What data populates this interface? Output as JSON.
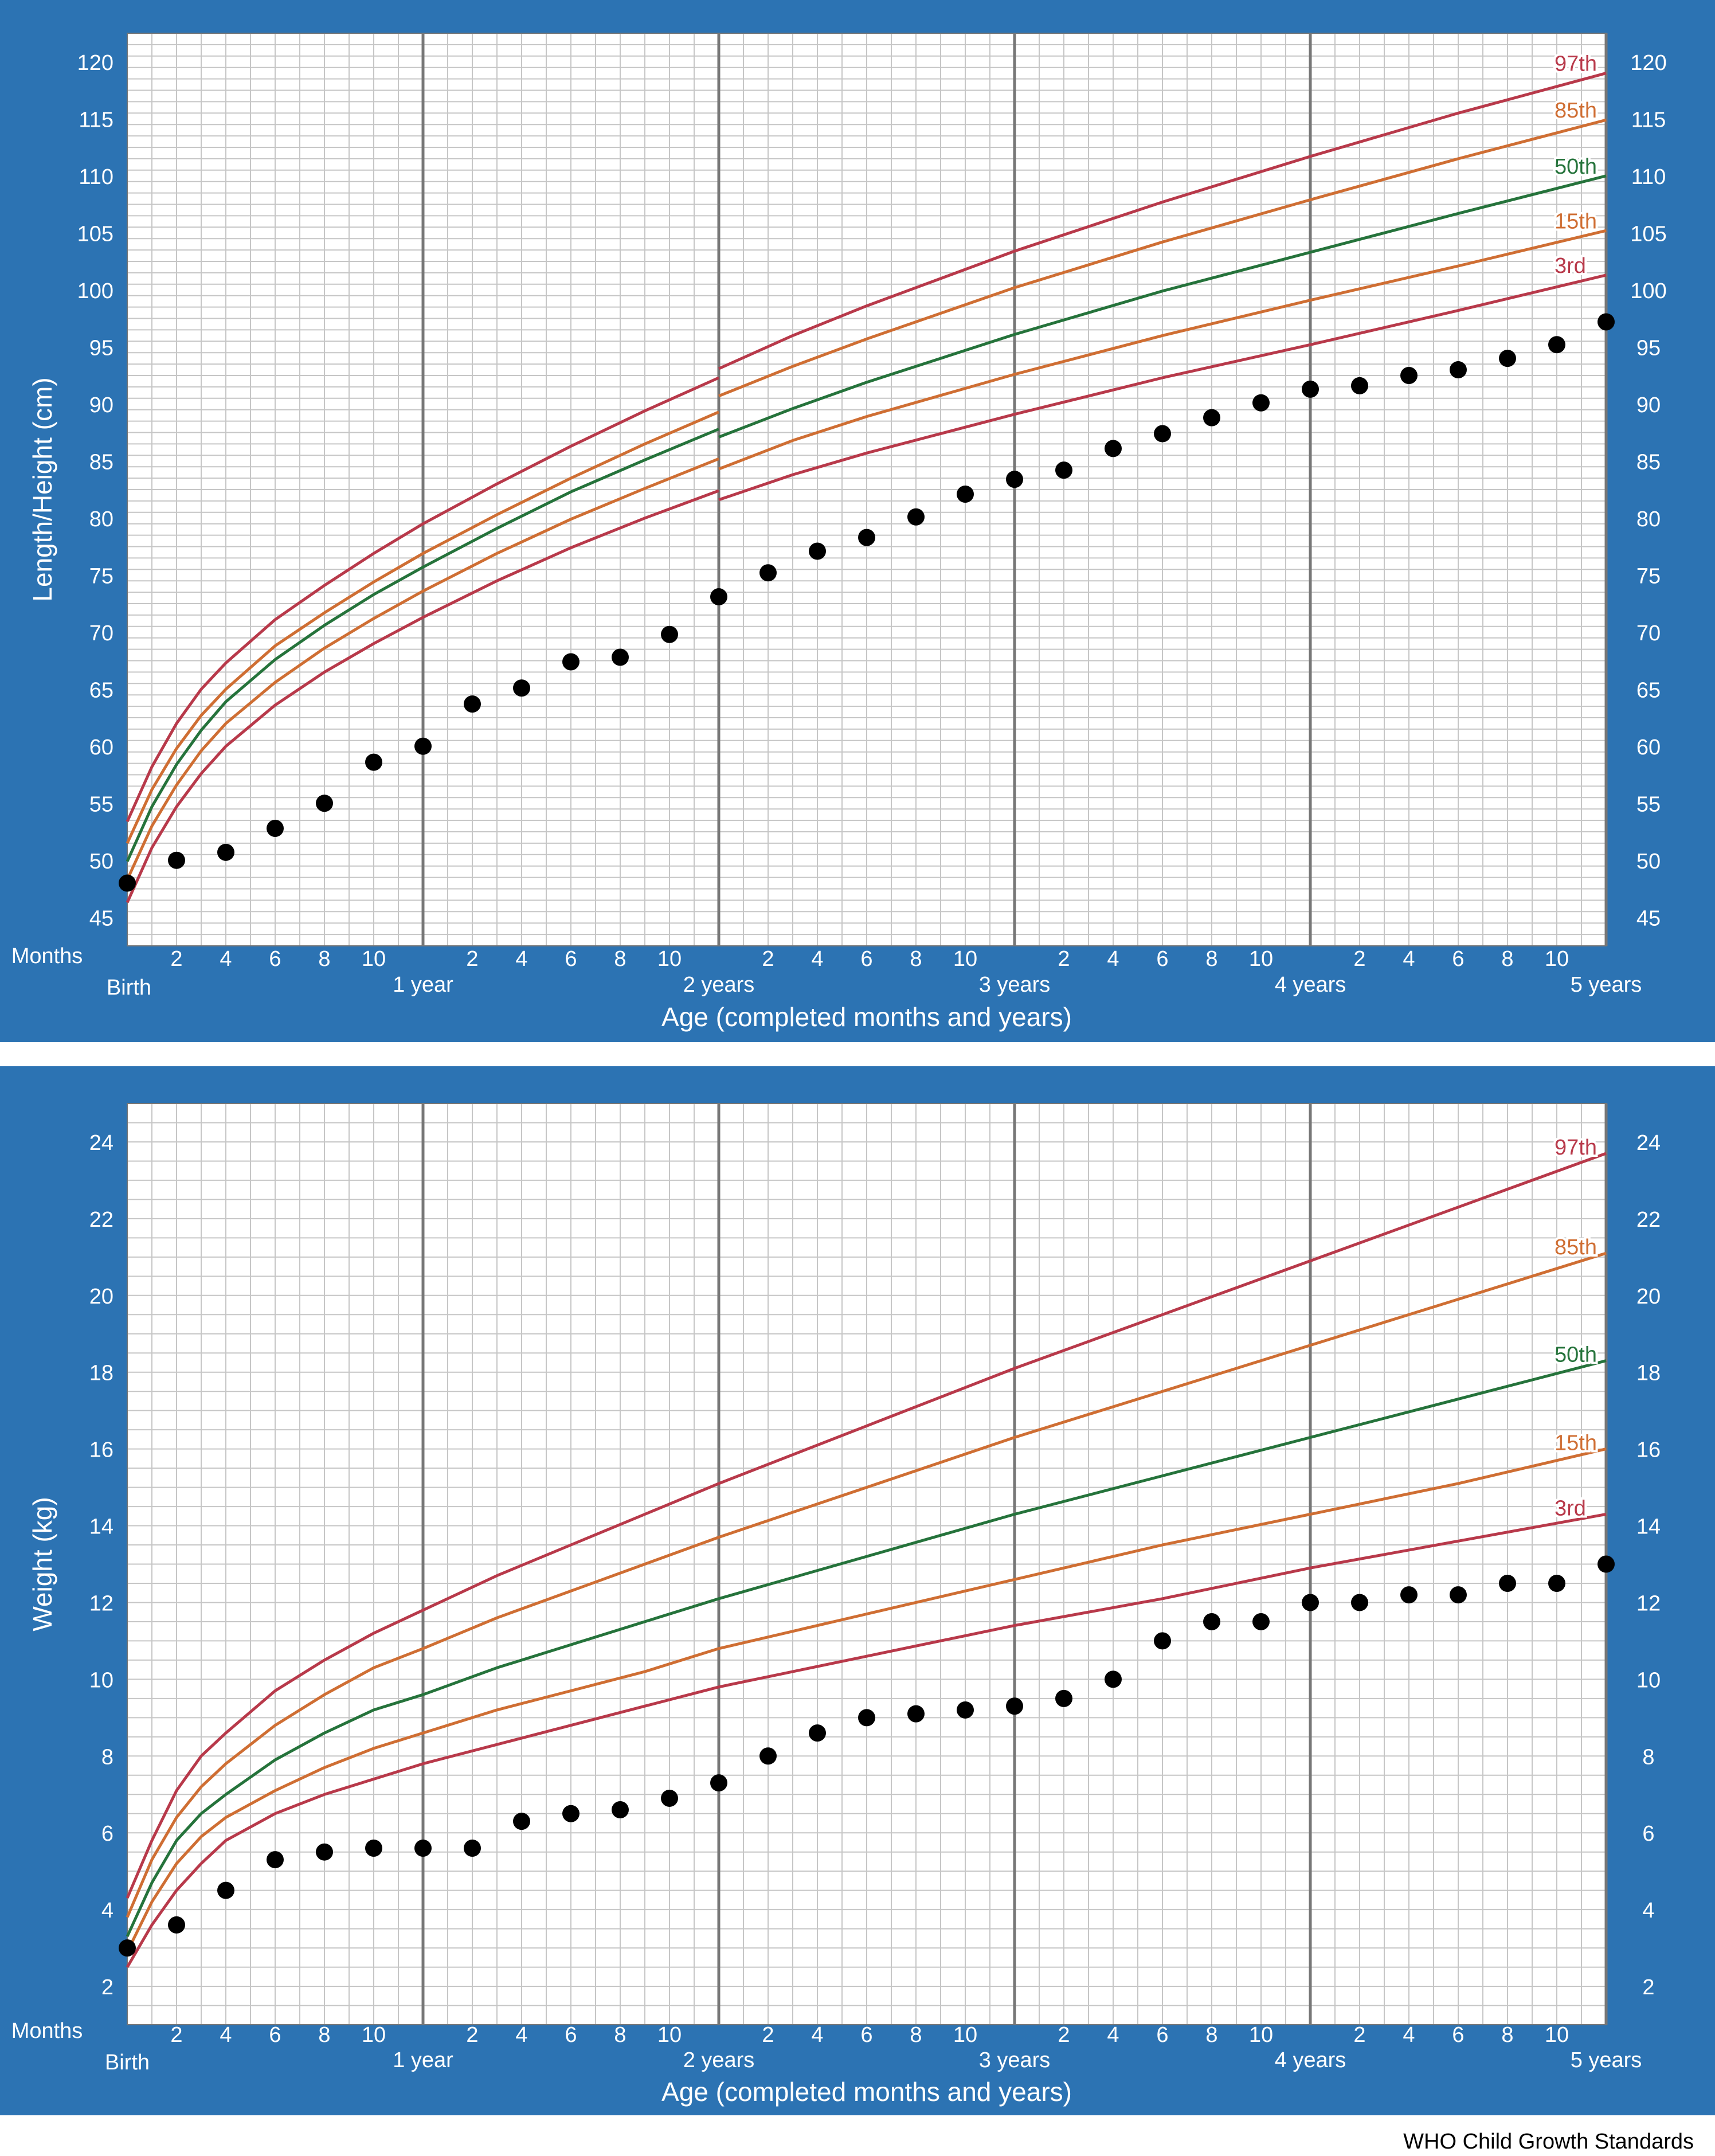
{
  "colors": {
    "panel": "#2c73b3",
    "plot_bg": "#ffffff",
    "grid_minor": "#c6c6c6",
    "grid_major": "#777777",
    "p97": "#b8394a",
    "p85": "#cf6e33",
    "p50": "#25733b",
    "p15": "#cf6e33",
    "p3": "#b8394a",
    "points": "#000000",
    "axis_text": "#ffffff",
    "credit_text": "#000000"
  },
  "common": {
    "months_label": "Months",
    "birth_label": "Birth",
    "month_ticks": [
      "2",
      "4",
      "6",
      "8",
      "10"
    ],
    "year_labels": [
      "1 year",
      "2 years",
      "3 years",
      "4 years",
      "5 years"
    ],
    "xlabel": "Age (completed months and years)"
  },
  "credit": "WHO Child Growth Standards",
  "chart_data": [
    {
      "type": "line",
      "chart_id": "length",
      "ylabel": "Length/Height (cm)",
      "xlabel": "Age (completed months and years)",
      "x_unit": "months",
      "xlim": [
        0,
        60
      ],
      "ylim": [
        42.5,
        122.5
      ],
      "y_ticks": [
        45,
        50,
        55,
        60,
        65,
        70,
        75,
        80,
        85,
        90,
        95,
        100,
        105,
        110,
        115,
        120
      ],
      "grid": true,
      "series": [
        {
          "name": "97th",
          "color_key": "p97",
          "x": [
            0,
            1,
            2,
            3,
            4,
            6,
            8,
            10,
            12,
            15,
            18,
            21,
            24,
            24,
            27,
            30,
            36,
            42,
            48,
            54,
            60
          ],
          "y": [
            53.4,
            58.2,
            62.0,
            65.0,
            67.3,
            71.1,
            74.1,
            76.9,
            79.5,
            83.0,
            86.3,
            89.4,
            92.3,
            93.1,
            96.0,
            98.6,
            103.4,
            107.7,
            111.7,
            115.5,
            119.0
          ]
        },
        {
          "name": "85th",
          "color_key": "p85",
          "x": [
            0,
            1,
            2,
            3,
            4,
            6,
            8,
            10,
            12,
            15,
            18,
            21,
            24,
            24,
            27,
            30,
            36,
            42,
            48,
            54,
            60
          ],
          "y": [
            51.5,
            56.2,
            59.8,
            62.7,
            65.0,
            68.8,
            71.7,
            74.4,
            76.9,
            80.3,
            83.5,
            86.5,
            89.3,
            90.7,
            93.3,
            95.7,
            100.2,
            104.2,
            107.9,
            111.5,
            114.9
          ]
        },
        {
          "name": "50th",
          "color_key": "p50",
          "x": [
            0,
            1,
            2,
            3,
            4,
            6,
            8,
            10,
            12,
            15,
            18,
            21,
            24,
            24,
            27,
            30,
            36,
            42,
            48,
            54,
            60
          ],
          "y": [
            49.9,
            54.7,
            58.4,
            61.4,
            63.9,
            67.6,
            70.6,
            73.3,
            75.7,
            79.1,
            82.3,
            85.1,
            87.8,
            87.1,
            89.6,
            91.9,
            96.1,
            99.9,
            103.3,
            106.7,
            110.0
          ]
        },
        {
          "name": "15th",
          "color_key": "p15",
          "x": [
            0,
            1,
            2,
            3,
            4,
            6,
            8,
            10,
            12,
            15,
            18,
            21,
            24,
            24,
            27,
            30,
            36,
            42,
            48,
            54,
            60
          ],
          "y": [
            48.3,
            53.0,
            56.6,
            59.6,
            62.0,
            65.6,
            68.6,
            71.2,
            73.6,
            76.9,
            79.9,
            82.6,
            85.2,
            84.3,
            86.8,
            88.9,
            92.6,
            96.0,
            99.1,
            102.1,
            105.2
          ]
        },
        {
          "name": "3rd",
          "color_key": "p3",
          "x": [
            0,
            1,
            2,
            3,
            4,
            6,
            8,
            10,
            12,
            15,
            18,
            21,
            24,
            24,
            27,
            30,
            36,
            42,
            48,
            54,
            60
          ],
          "y": [
            46.3,
            51.1,
            54.7,
            57.6,
            60.0,
            63.6,
            66.5,
            69.0,
            71.3,
            74.5,
            77.4,
            80.0,
            82.4,
            81.6,
            83.8,
            85.7,
            89.1,
            92.3,
            95.2,
            98.2,
            101.3
          ]
        },
        {
          "name": "",
          "kind": "points",
          "color_key": "points",
          "x": [
            0,
            2,
            4,
            6,
            8,
            10,
            12,
            14,
            16,
            18,
            20,
            22,
            24,
            26,
            28,
            30,
            32,
            34,
            36,
            38,
            40,
            42,
            44,
            46,
            48,
            50,
            52,
            54,
            56,
            58,
            60
          ],
          "y": [
            48.0,
            50.0,
            50.7,
            52.8,
            55.0,
            58.6,
            60.0,
            63.7,
            65.1,
            67.4,
            67.8,
            69.8,
            73.1,
            75.2,
            77.1,
            78.3,
            80.1,
            82.1,
            83.4,
            84.2,
            86.1,
            87.4,
            88.8,
            90.1,
            91.3,
            91.6,
            92.5,
            93.0,
            94.0,
            95.2,
            97.2
          ]
        }
      ]
    },
    {
      "type": "line",
      "chart_id": "weight",
      "ylabel": "Weight (kg)",
      "xlabel": "Age (completed months and years)",
      "x_unit": "months",
      "xlim": [
        0,
        60
      ],
      "ylim": [
        1,
        25
      ],
      "y_ticks": [
        2,
        4,
        6,
        8,
        10,
        12,
        14,
        16,
        18,
        20,
        22,
        24
      ],
      "grid": true,
      "series": [
        {
          "name": "97th",
          "color_key": "p97",
          "x": [
            0,
            1,
            2,
            3,
            4,
            6,
            8,
            10,
            12,
            15,
            18,
            21,
            24,
            30,
            36,
            42,
            48,
            54,
            60
          ],
          "y": [
            4.3,
            5.8,
            7.1,
            8.0,
            8.6,
            9.7,
            10.5,
            11.2,
            11.8,
            12.7,
            13.5,
            14.3,
            15.1,
            16.6,
            18.1,
            19.5,
            20.9,
            22.3,
            23.7
          ]
        },
        {
          "name": "85th",
          "color_key": "p85",
          "x": [
            0,
            1,
            2,
            3,
            4,
            6,
            8,
            10,
            12,
            15,
            18,
            21,
            24,
            30,
            36,
            42,
            48,
            54,
            60
          ],
          "y": [
            3.8,
            5.3,
            6.4,
            7.2,
            7.8,
            8.8,
            9.6,
            10.3,
            10.8,
            11.6,
            12.3,
            13.0,
            13.7,
            15.0,
            16.3,
            17.5,
            18.7,
            19.9,
            21.1
          ]
        },
        {
          "name": "50th",
          "color_key": "p50",
          "x": [
            0,
            1,
            2,
            3,
            4,
            6,
            8,
            10,
            12,
            15,
            18,
            21,
            24,
            30,
            36,
            42,
            48,
            54,
            60
          ],
          "y": [
            3.3,
            4.7,
            5.8,
            6.5,
            7.0,
            7.9,
            8.6,
            9.2,
            9.6,
            10.3,
            10.9,
            11.5,
            12.1,
            13.2,
            14.3,
            15.3,
            16.3,
            17.3,
            18.3
          ]
        },
        {
          "name": "15th",
          "color_key": "p15",
          "x": [
            0,
            1,
            2,
            3,
            4,
            6,
            8,
            10,
            12,
            15,
            18,
            21,
            24,
            30,
            36,
            42,
            48,
            54,
            60
          ],
          "y": [
            2.9,
            4.2,
            5.2,
            5.9,
            6.4,
            7.1,
            7.7,
            8.2,
            8.6,
            9.2,
            9.7,
            10.2,
            10.8,
            11.7,
            12.6,
            13.5,
            14.3,
            15.1,
            16.0
          ]
        },
        {
          "name": "3rd",
          "color_key": "p3",
          "x": [
            0,
            1,
            2,
            3,
            4,
            6,
            8,
            10,
            12,
            15,
            18,
            21,
            24,
            30,
            36,
            42,
            48,
            54,
            60
          ],
          "y": [
            2.5,
            3.6,
            4.5,
            5.2,
            5.8,
            6.5,
            7.0,
            7.4,
            7.8,
            8.3,
            8.8,
            9.3,
            9.8,
            10.6,
            11.4,
            12.1,
            12.9,
            13.6,
            14.3
          ]
        },
        {
          "name": "",
          "kind": "points",
          "color_key": "points",
          "x": [
            0,
            2,
            4,
            6,
            8,
            10,
            12,
            14,
            16,
            18,
            20,
            22,
            24,
            26,
            28,
            30,
            32,
            34,
            36,
            38,
            40,
            42,
            44,
            46,
            48,
            50,
            52,
            54,
            56,
            58,
            60
          ],
          "y": [
            3.0,
            3.6,
            4.5,
            5.3,
            5.5,
            5.6,
            5.6,
            5.6,
            6.3,
            6.5,
            6.6,
            6.9,
            7.3,
            8.0,
            8.6,
            9.0,
            9.1,
            9.2,
            9.3,
            9.5,
            10.0,
            11.0,
            11.5,
            11.5,
            12.0,
            12.0,
            12.2,
            12.2,
            12.5,
            12.5,
            13.0
          ]
        }
      ]
    }
  ]
}
